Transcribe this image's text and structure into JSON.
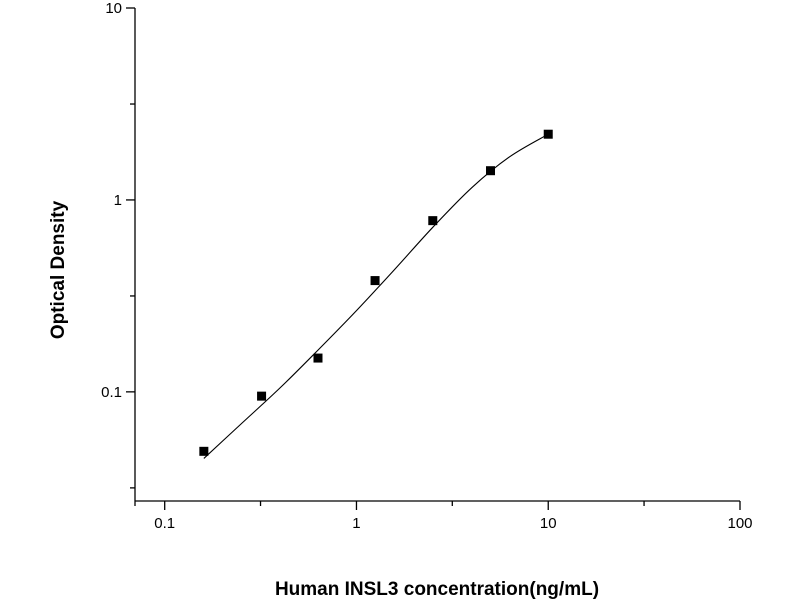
{
  "chart_data": {
    "type": "scatter",
    "xlabel": "Human INSL3 concentration(ng/mL)",
    "ylabel": "Optical Density",
    "x_scale": "log",
    "y_scale": "log",
    "xlim": [
      0.07,
      100
    ],
    "ylim": [
      0.027,
      10
    ],
    "x_ticks": [
      "0.1",
      "1",
      "10",
      "100"
    ],
    "y_ticks": [
      "0.1",
      "1",
      "10"
    ],
    "grid": false,
    "series": [
      {
        "points": [
          {
            "x": 0.16,
            "y": 0.049
          },
          {
            "x": 0.32,
            "y": 0.095
          },
          {
            "x": 0.63,
            "y": 0.15
          },
          {
            "x": 1.25,
            "y": 0.38
          },
          {
            "x": 2.5,
            "y": 0.78
          },
          {
            "x": 5,
            "y": 1.42
          },
          {
            "x": 10,
            "y": 2.2
          }
        ]
      }
    ],
    "fit_curve": {
      "type": "four-parameter logistic",
      "x_range": [
        0.16,
        10
      ],
      "points": [
        {
          "x": 0.16,
          "y": 0.045
        },
        {
          "x": 0.25,
          "y": 0.068
        },
        {
          "x": 0.4,
          "y": 0.105
        },
        {
          "x": 0.63,
          "y": 0.165
        },
        {
          "x": 1,
          "y": 0.265
        },
        {
          "x": 1.6,
          "y": 0.44
        },
        {
          "x": 2.5,
          "y": 0.72
        },
        {
          "x": 4,
          "y": 1.16
        },
        {
          "x": 6.3,
          "y": 1.68
        },
        {
          "x": 10,
          "y": 2.2
        }
      ]
    }
  }
}
